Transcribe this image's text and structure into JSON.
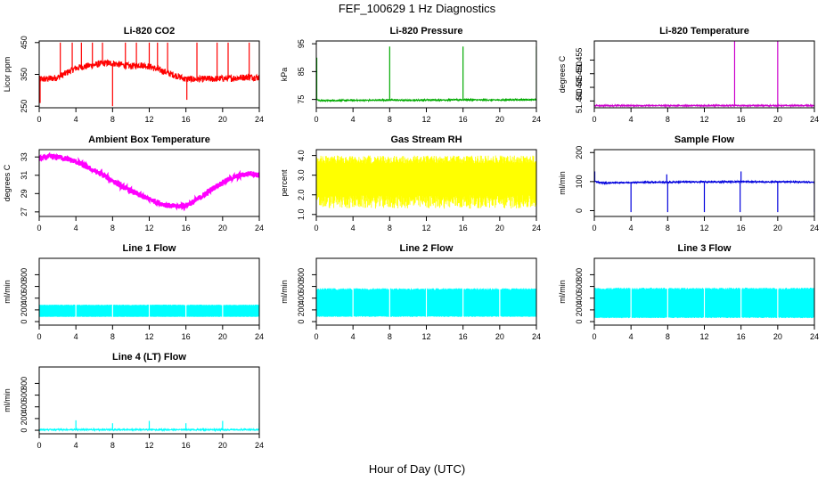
{
  "figure": {
    "title": "FEF_100629  1 Hz Diagnostics",
    "xlabel": "Hour of Day (UTC)"
  },
  "colors": {
    "co2": "#ff0000",
    "pressure": "#00aa00",
    "temperature": "#cc00cc",
    "box_temp": "#ff00ff",
    "rh": "#ffff00",
    "sample_flow": "#0000dd",
    "line_flow": "#00ffff"
  },
  "chart_data": [
    {
      "type": "line",
      "title": "Li-820 CO2",
      "ylabel": "Licor ppm",
      "xlim": [
        0,
        24
      ],
      "ylim": [
        245,
        455
      ],
      "xticks": [
        0,
        4,
        8,
        12,
        16,
        20,
        24
      ],
      "yticks": [
        250,
        350,
        450
      ],
      "color_key": "co2",
      "series": [
        {
          "x": [
            0,
            0.5,
            1,
            2,
            3,
            4,
            5,
            6,
            7,
            8,
            9,
            10,
            11,
            12,
            13,
            14,
            15,
            16,
            17,
            18,
            19,
            20,
            21,
            22,
            23,
            24
          ],
          "y": [
            335,
            335,
            336,
            340,
            355,
            370,
            375,
            380,
            385,
            385,
            380,
            375,
            380,
            375,
            365,
            355,
            345,
            335,
            335,
            335,
            336,
            337,
            338,
            340,
            342,
            340
          ]
        }
      ],
      "spikes": [
        {
          "x": 2.3,
          "y": 450
        },
        {
          "x": 3.6,
          "y": 450
        },
        {
          "x": 4.6,
          "y": 450
        },
        {
          "x": 5.8,
          "y": 450
        },
        {
          "x": 6.9,
          "y": 450
        },
        {
          "x": 8.0,
          "y": 250
        },
        {
          "x": 9.4,
          "y": 450
        },
        {
          "x": 10.6,
          "y": 450
        },
        {
          "x": 12.0,
          "y": 450
        },
        {
          "x": 12.9,
          "y": 450
        },
        {
          "x": 14.0,
          "y": 450
        },
        {
          "x": 16.1,
          "y": 270
        },
        {
          "x": 17.2,
          "y": 450
        },
        {
          "x": 19.4,
          "y": 450
        },
        {
          "x": 20.6,
          "y": 450
        },
        {
          "x": 22.9,
          "y": 450
        },
        {
          "x": 0.1,
          "y": 260
        }
      ]
    },
    {
      "type": "line",
      "title": "Li-820 Pressure",
      "ylabel": "kPa",
      "xlim": [
        0,
        24
      ],
      "ylim": [
        72,
        96
      ],
      "xticks": [
        0,
        4,
        8,
        12,
        16,
        20,
        24
      ],
      "yticks": [
        75,
        85,
        95
      ],
      "color_key": "pressure",
      "series": [
        {
          "x": [
            0,
            0.3,
            2,
            4,
            6,
            8,
            10,
            12,
            14,
            16,
            18,
            20,
            22,
            24
          ],
          "y": [
            75.2,
            74.6,
            74.6,
            74.7,
            74.7,
            74.8,
            74.7,
            74.8,
            74.8,
            74.9,
            74.8,
            74.8,
            74.9,
            74.9
          ]
        }
      ],
      "spikes": [
        {
          "x": 0.05,
          "y": 90
        },
        {
          "x": 8.0,
          "y": 94
        },
        {
          "x": 16.0,
          "y": 94
        },
        {
          "x": 24.0,
          "y": 94
        }
      ]
    },
    {
      "type": "line",
      "title": "Li-820 Temperature",
      "ylabel": "degrees C",
      "xlim": [
        0,
        24
      ],
      "ylim": [
        51.4375,
        51.462
      ],
      "xticks": [
        0,
        4,
        8,
        12,
        16,
        20,
        24
      ],
      "yticks": [
        51.44,
        51.445,
        51.45,
        51.455
      ],
      "ytick_labels": [
        "51.440",
        "",
        "51.450",
        ""
      ],
      "ytick_labels_alt": [
        "",
        "51.445",
        "",
        "51.455"
      ],
      "color_key": "temperature",
      "series": [
        {
          "x": [
            0,
            24
          ],
          "y": [
            51.4383,
            51.4383
          ]
        }
      ],
      "spikes": [
        {
          "x": 15.3,
          "y": 51.462
        },
        {
          "x": 20.0,
          "y": 51.462
        }
      ]
    },
    {
      "type": "line",
      "title": "Ambient Box Temperature",
      "ylabel": "degrees C",
      "xlim": [
        0,
        24
      ],
      "ylim": [
        26.5,
        33.8
      ],
      "xticks": [
        0,
        4,
        8,
        12,
        16,
        20,
        24
      ],
      "yticks": [
        27,
        29,
        31,
        33
      ],
      "color_key": "box_temp",
      "series": [
        {
          "x": [
            0,
            1,
            2,
            3,
            4,
            5,
            6,
            7,
            8,
            9,
            10,
            11,
            12,
            13,
            14,
            15,
            16,
            17,
            18,
            19,
            20,
            21,
            22,
            23,
            24
          ],
          "y": [
            32.8,
            33.0,
            33.0,
            32.8,
            32.5,
            32.0,
            31.5,
            31.0,
            30.4,
            29.8,
            29.3,
            28.8,
            28.4,
            28.0,
            27.7,
            27.6,
            27.7,
            28.2,
            28.9,
            29.6,
            30.2,
            30.7,
            31.0,
            31.2,
            31.0
          ]
        }
      ]
    },
    {
      "type": "line",
      "title": "Gas Stream RH",
      "ylabel": "percent",
      "xlim": [
        0,
        24
      ],
      "ylim": [
        0.9,
        4.3
      ],
      "xticks": [
        0,
        4,
        8,
        12,
        16,
        20,
        24
      ],
      "yticks": [
        1.0,
        2.0,
        3.0,
        4.0
      ],
      "ytick_labels": [
        "1.0",
        "2.0",
        "3.0",
        "4.0"
      ],
      "color_key": "rh",
      "band": {
        "low": 1.3,
        "high": 4.0
      }
    },
    {
      "type": "line",
      "title": "Sample Flow",
      "ylabel": "ml/min",
      "xlim": [
        0,
        24
      ],
      "ylim": [
        -20,
        210
      ],
      "xticks": [
        0,
        4,
        8,
        12,
        16,
        20,
        24
      ],
      "yticks": [
        0,
        100,
        200
      ],
      "color_key": "sample_flow",
      "series": [
        {
          "x": [
            0,
            1,
            2,
            4,
            6,
            8,
            10,
            12,
            14,
            16,
            18,
            20,
            22,
            24
          ],
          "y": [
            100,
            95,
            96,
            97,
            98,
            98,
            99,
            99,
            99,
            100,
            99,
            99,
            99,
            98
          ]
        }
      ],
      "spikes": [
        {
          "x": 0.05,
          "y": 135
        },
        {
          "x": 4.0,
          "y": -5
        },
        {
          "x": 8.0,
          "y": -5
        },
        {
          "x": 7.9,
          "y": 125
        },
        {
          "x": 12.0,
          "y": -5
        },
        {
          "x": 15.9,
          "y": -5
        },
        {
          "x": 16.0,
          "y": 135
        },
        {
          "x": 20.0,
          "y": -5
        },
        {
          "x": 24.0,
          "y": -5
        }
      ]
    },
    {
      "type": "area",
      "title": "Line 1 Flow",
      "ylabel": "ml/min",
      "xlim": [
        0,
        24
      ],
      "ylim": [
        -60,
        1080
      ],
      "xticks": [
        0,
        4,
        8,
        12,
        16,
        20,
        24
      ],
      "yticks": [
        0,
        200,
        400,
        600,
        800
      ],
      "color_key": "line_flow",
      "band": {
        "low": 80,
        "high": 290
      },
      "gaps": [
        4,
        8,
        12,
        16,
        20,
        24
      ]
    },
    {
      "type": "area",
      "title": "Line 2 Flow",
      "ylabel": "ml/min",
      "xlim": [
        0,
        24
      ],
      "ylim": [
        -60,
        1080
      ],
      "xticks": [
        0,
        4,
        8,
        12,
        16,
        20,
        24
      ],
      "yticks": [
        0,
        200,
        400,
        600,
        800
      ],
      "color_key": "line_flow",
      "band": {
        "low": 80,
        "high": 570
      },
      "gaps": [
        4,
        8,
        12,
        16,
        20,
        24
      ]
    },
    {
      "type": "area",
      "title": "Line 3 Flow",
      "ylabel": "ml/min",
      "xlim": [
        0,
        24
      ],
      "ylim": [
        -60,
        1080
      ],
      "xticks": [
        0,
        4,
        8,
        12,
        16,
        20,
        24
      ],
      "yticks": [
        0,
        200,
        400,
        600,
        800
      ],
      "color_key": "line_flow",
      "band": {
        "low": 60,
        "high": 580
      },
      "gaps": [
        4,
        8,
        12,
        16,
        20,
        24
      ]
    },
    {
      "type": "line",
      "title": "Line 4 (LT) Flow",
      "ylabel": "ml/min",
      "xlim": [
        0,
        24
      ],
      "ylim": [
        -60,
        1080
      ],
      "xticks": [
        0,
        4,
        8,
        12,
        16,
        20,
        24
      ],
      "yticks": [
        0,
        200,
        400,
        600,
        800
      ],
      "color_key": "line_flow",
      "series": [
        {
          "x": [
            0,
            24
          ],
          "y": [
            10,
            10
          ]
        }
      ],
      "spikes": [
        {
          "x": 4.0,
          "y": 170
        },
        {
          "x": 8.0,
          "y": 120
        },
        {
          "x": 12.0,
          "y": 160
        },
        {
          "x": 16.0,
          "y": 120
        },
        {
          "x": 20.0,
          "y": 160
        },
        {
          "x": 24.0,
          "y": 120
        }
      ]
    }
  ]
}
